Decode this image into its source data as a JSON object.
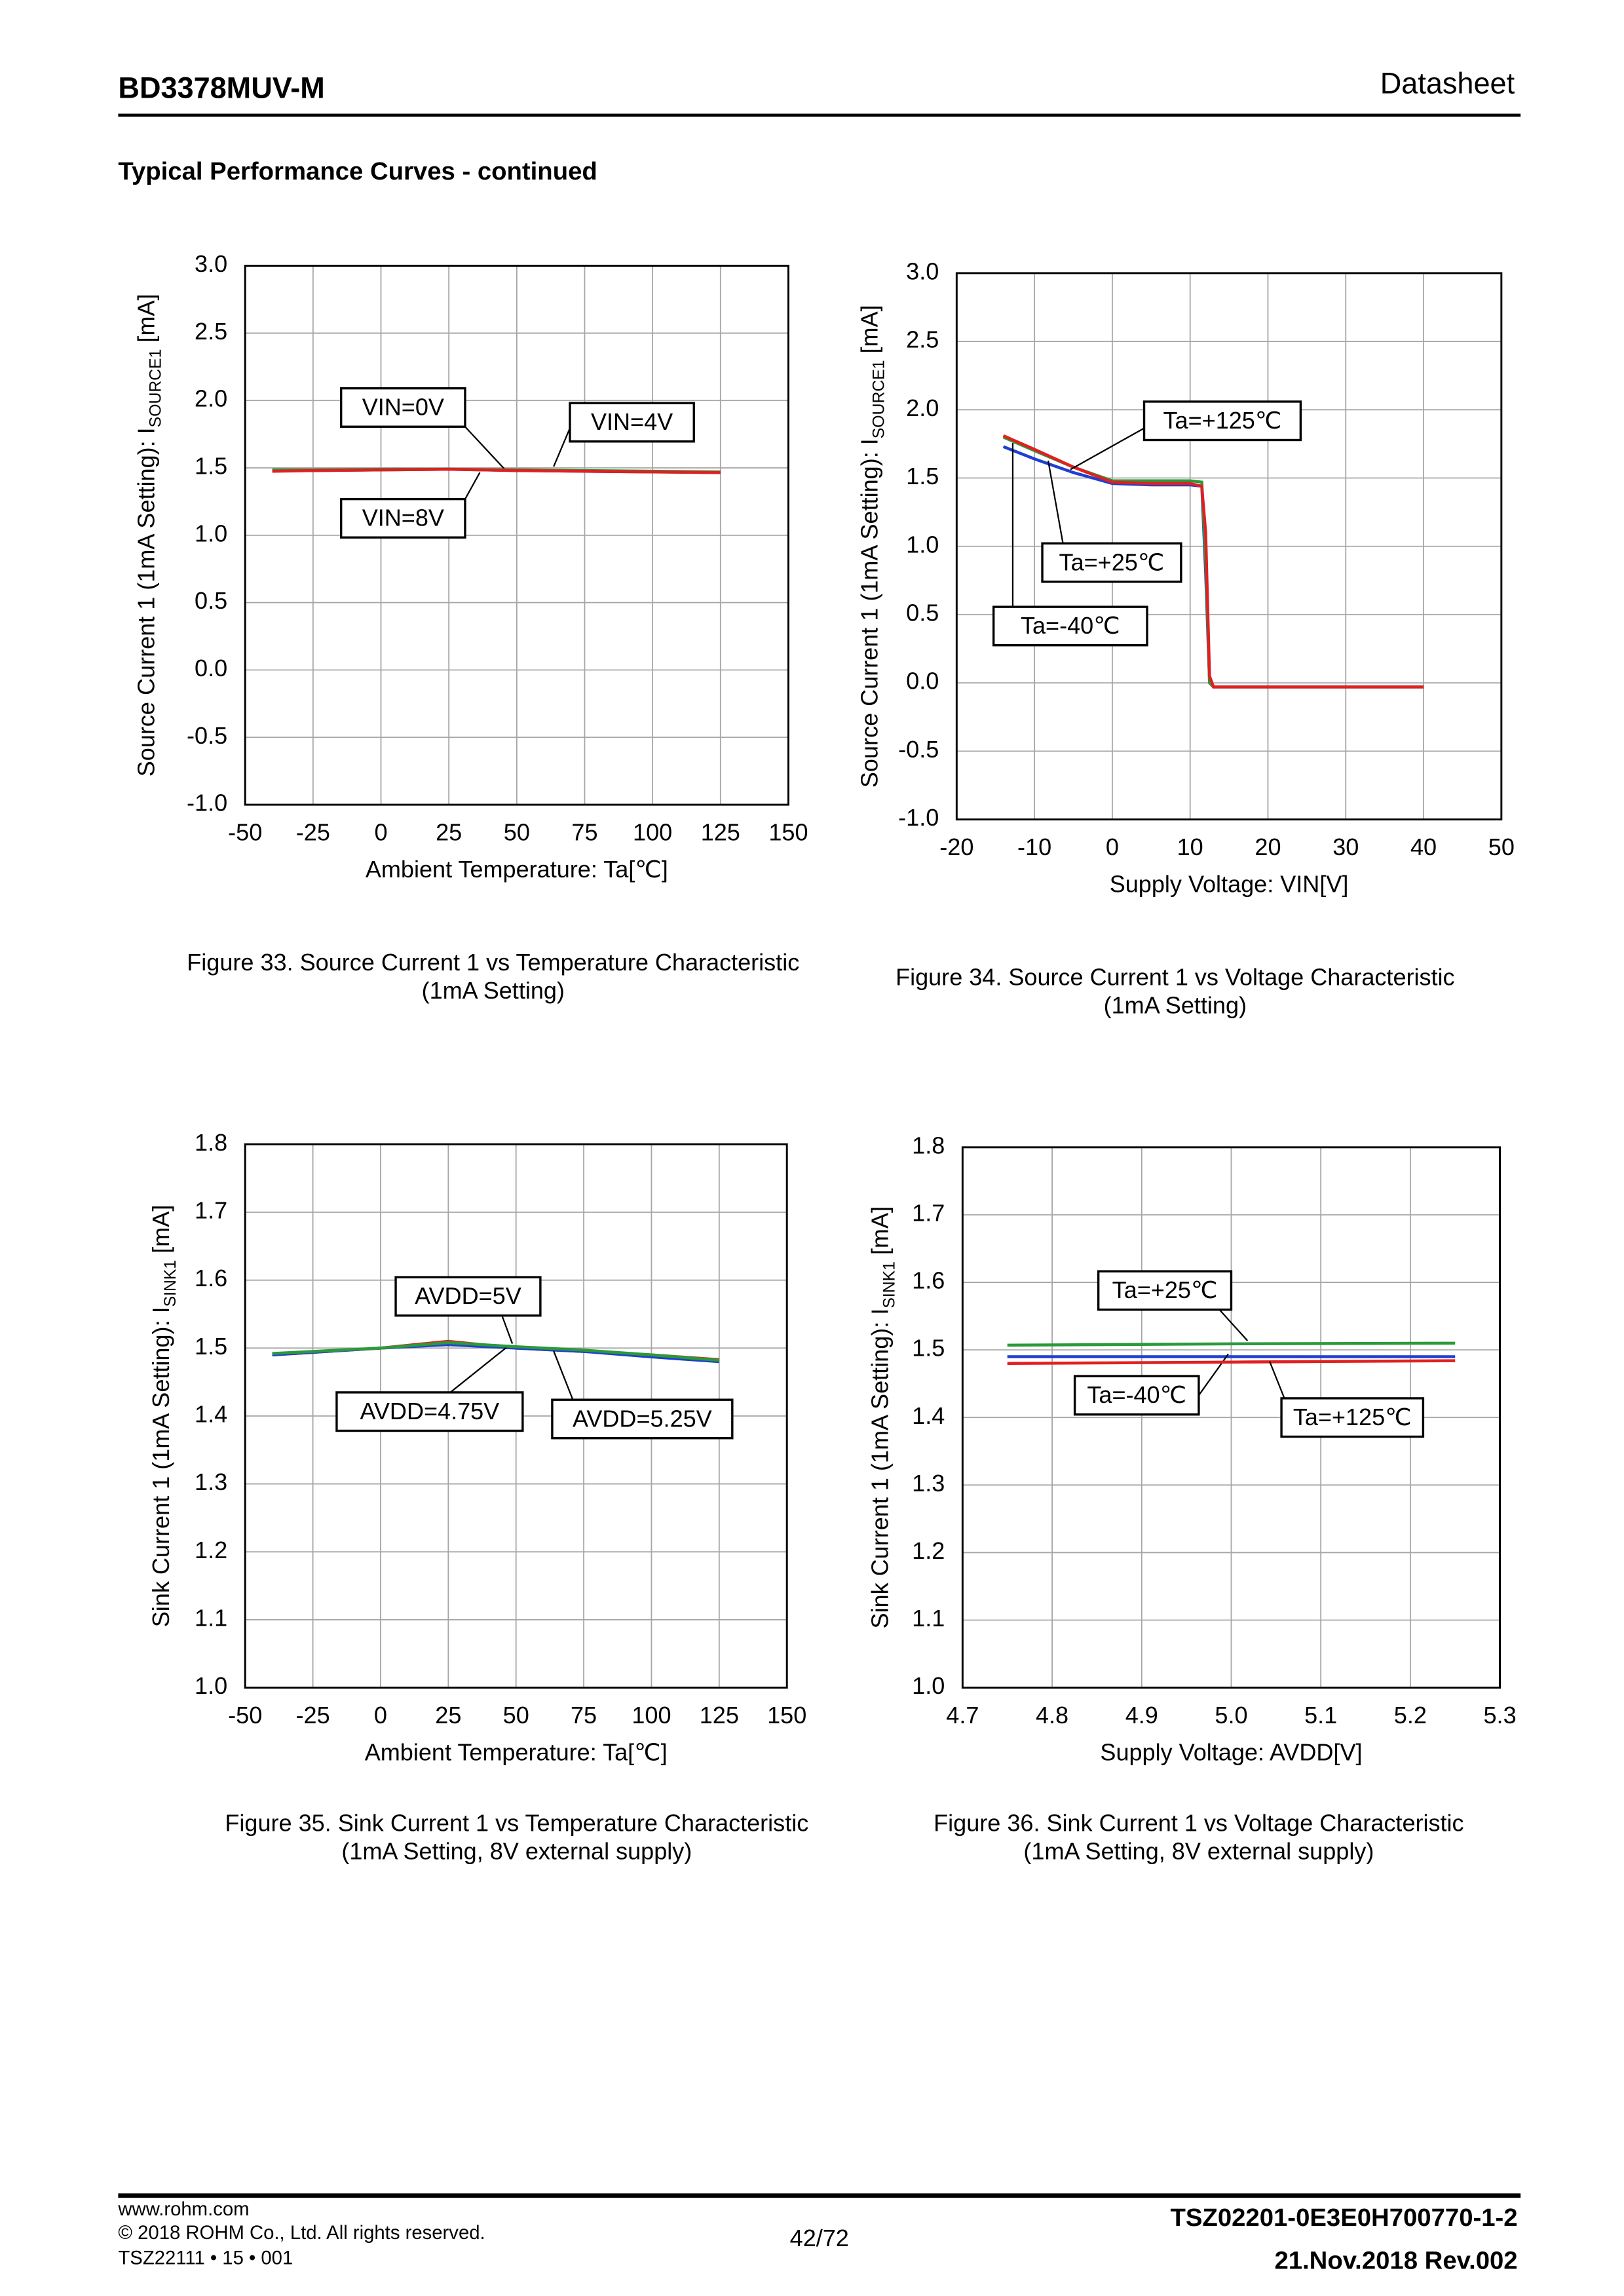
{
  "header": {
    "part": "BD3378MUV-M",
    "doc": "Datasheet"
  },
  "section_title": "Typical Performance Curves - continued",
  "chart_data": [
    {
      "type": "line",
      "caption": [
        "Figure 33. Source Current 1 vs Temperature Characteristic",
        "(1mA Setting)"
      ],
      "xlabel": "Ambient Temperature: Ta[℃]",
      "ylabel": [
        "Source Current 1 (1mA Setting): I",
        "SOURCE1",
        " [mA]"
      ],
      "x": [
        -40,
        -25,
        0,
        25,
        50,
        75,
        100,
        125
      ],
      "series": [
        {
          "name": "VIN=0V",
          "color": "#1f3fd0",
          "values": [
            1.48,
            1.48,
            1.485,
            1.49,
            1.48,
            1.475,
            1.47,
            1.465
          ]
        },
        {
          "name": "VIN=4V",
          "color": "#2a9a3a",
          "values": [
            1.485,
            1.485,
            1.49,
            1.49,
            1.485,
            1.48,
            1.475,
            1.47
          ]
        },
        {
          "name": "VIN=8V",
          "color": "#e02020",
          "values": [
            1.475,
            1.48,
            1.485,
            1.49,
            1.48,
            1.475,
            1.47,
            1.465
          ]
        }
      ],
      "xlim": [
        -50,
        150
      ],
      "ylim": [
        -1,
        3
      ],
      "xticks": [
        -50,
        -25,
        0,
        25,
        50,
        75,
        100,
        125,
        150
      ],
      "yticks": [
        {
          "value": -1,
          "label": "-1.0"
        },
        -0.5,
        {
          "value": 0,
          "label": "0.0"
        },
        0.5,
        {
          "value": 1,
          "label": "1.0"
        },
        1.5,
        {
          "value": 2,
          "label": "2.0"
        },
        2.5,
        {
          "value": 3,
          "label": "3.0"
        }
      ],
      "grid": true
    },
    {
      "type": "line",
      "caption": [
        "Figure 34. Source Current 1 vs Voltage Characteristic",
        "(1mA Setting)"
      ],
      "xlabel": "Supply Voltage: VIN[V]",
      "ylabel": [
        "Source Current 1 (1mA Setting): I",
        "SOURCE1",
        " [mA]"
      ],
      "x": [
        -14,
        -10,
        -5,
        0,
        5,
        10,
        11.5,
        12,
        12.5,
        13,
        20,
        30,
        40
      ],
      "series": [
        {
          "name": "Ta=-40℃",
          "color": "#1f3fd0",
          "values": [
            1.73,
            1.64,
            1.54,
            1.46,
            1.45,
            1.45,
            1.44,
            0.8,
            0,
            -0.03,
            -0.03,
            -0.03,
            -0.03
          ]
        },
        {
          "name": "Ta=+25℃",
          "color": "#2a9a3a",
          "values": [
            1.8,
            1.7,
            1.58,
            1.48,
            1.48,
            1.48,
            1.47,
            0.9,
            0,
            -0.03,
            -0.03,
            -0.03,
            -0.03
          ]
        },
        {
          "name": "Ta=+125℃",
          "color": "#e02020",
          "values": [
            1.81,
            1.71,
            1.58,
            1.47,
            1.46,
            1.46,
            1.44,
            1.1,
            0.05,
            -0.03,
            -0.03,
            -0.03,
            -0.03
          ]
        }
      ],
      "xlim": [
        -20,
        50
      ],
      "ylim": [
        -1,
        3
      ],
      "xticks": [
        -20,
        -10,
        0,
        10,
        20,
        30,
        40,
        50
      ],
      "yticks": [
        {
          "value": -1,
          "label": "-1.0"
        },
        -0.5,
        {
          "value": 0,
          "label": "0.0"
        },
        0.5,
        {
          "value": 1,
          "label": "1.0"
        },
        1.5,
        {
          "value": 2,
          "label": "2.0"
        },
        2.5,
        {
          "value": 3,
          "label": "3.0"
        }
      ],
      "grid": true
    },
    {
      "type": "line",
      "caption": [
        "Figure 35. Sink Current 1 vs Temperature Characteristic",
        "(1mA Setting, 8V external supply)"
      ],
      "xlabel": "Ambient Temperature: Ta[℃]",
      "ylabel": [
        "Sink Current 1 (1mA Setting): I",
        "SINK1",
        " [mA]"
      ],
      "x": [
        -40,
        0,
        25,
        50,
        75,
        100,
        125
      ],
      "series": [
        {
          "name": "AVDD=5V",
          "color": "#e02020",
          "values": [
            1.49,
            1.5,
            1.51,
            1.5,
            1.495,
            1.49,
            1.483
          ]
        },
        {
          "name": "AVDD=4.75V",
          "color": "#1f3fd0",
          "values": [
            1.49,
            1.5,
            1.505,
            1.5,
            1.495,
            1.487,
            1.48
          ]
        },
        {
          "name": "AVDD=5.25V",
          "color": "#2a9a3a",
          "values": [
            1.492,
            1.5,
            1.508,
            1.502,
            1.497,
            1.49,
            1.482
          ]
        }
      ],
      "xlim": [
        -50,
        150
      ],
      "ylim": [
        1,
        1.8
      ],
      "xticks": [
        -50,
        -25,
        0,
        25,
        50,
        75,
        100,
        125,
        150
      ],
      "yticks": [
        {
          "value": 1,
          "label": "1.0"
        },
        1.1,
        1.2,
        1.3,
        1.4,
        1.5,
        1.6,
        1.7,
        1.8
      ],
      "grid": true
    },
    {
      "type": "line",
      "caption": [
        "Figure 36. Sink Current 1 vs Voltage Characteristic",
        "(1mA Setting, 8V external supply)"
      ],
      "xlabel": "Supply Voltage: AVDD[V]",
      "ylabel": [
        "Sink Current 1 (1mA Setting): I",
        "SINK1",
        " [mA]"
      ],
      "x": [
        4.75,
        5,
        5.25
      ],
      "series": [
        {
          "name": "Ta=+25℃",
          "color": "#2a9a3a",
          "values": [
            1.507,
            1.509,
            1.51
          ]
        },
        {
          "name": "Ta=-40℃",
          "color": "#1f3fd0",
          "values": [
            1.49,
            1.49,
            1.49
          ]
        },
        {
          "name": "Ta=+125℃",
          "color": "#e02020",
          "values": [
            1.48,
            1.482,
            1.484
          ]
        }
      ],
      "xlim": [
        4.7,
        5.3
      ],
      "ylim": [
        1,
        1.8
      ],
      "xticks": [
        4.7,
        4.8,
        4.9,
        {
          "value": 5,
          "label": "5.0"
        },
        5.1,
        5.2,
        5.3
      ],
      "yticks": [
        {
          "value": 1,
          "label": "1.0"
        },
        1.1,
        1.2,
        1.3,
        1.4,
        1.5,
        1.6,
        1.7,
        1.8
      ],
      "grid": true
    }
  ],
  "footer": {
    "site": "www.rohm.com",
    "copyright": "© 2018 ROHM Co., Ltd. All rights reserved.",
    "form": "TSZ22111 • 15 • 001",
    "page": "42/72",
    "docno": "TSZ02201-0E3E0H700770-1-2",
    "date": "21.Nov.2018 Rev.002"
  }
}
